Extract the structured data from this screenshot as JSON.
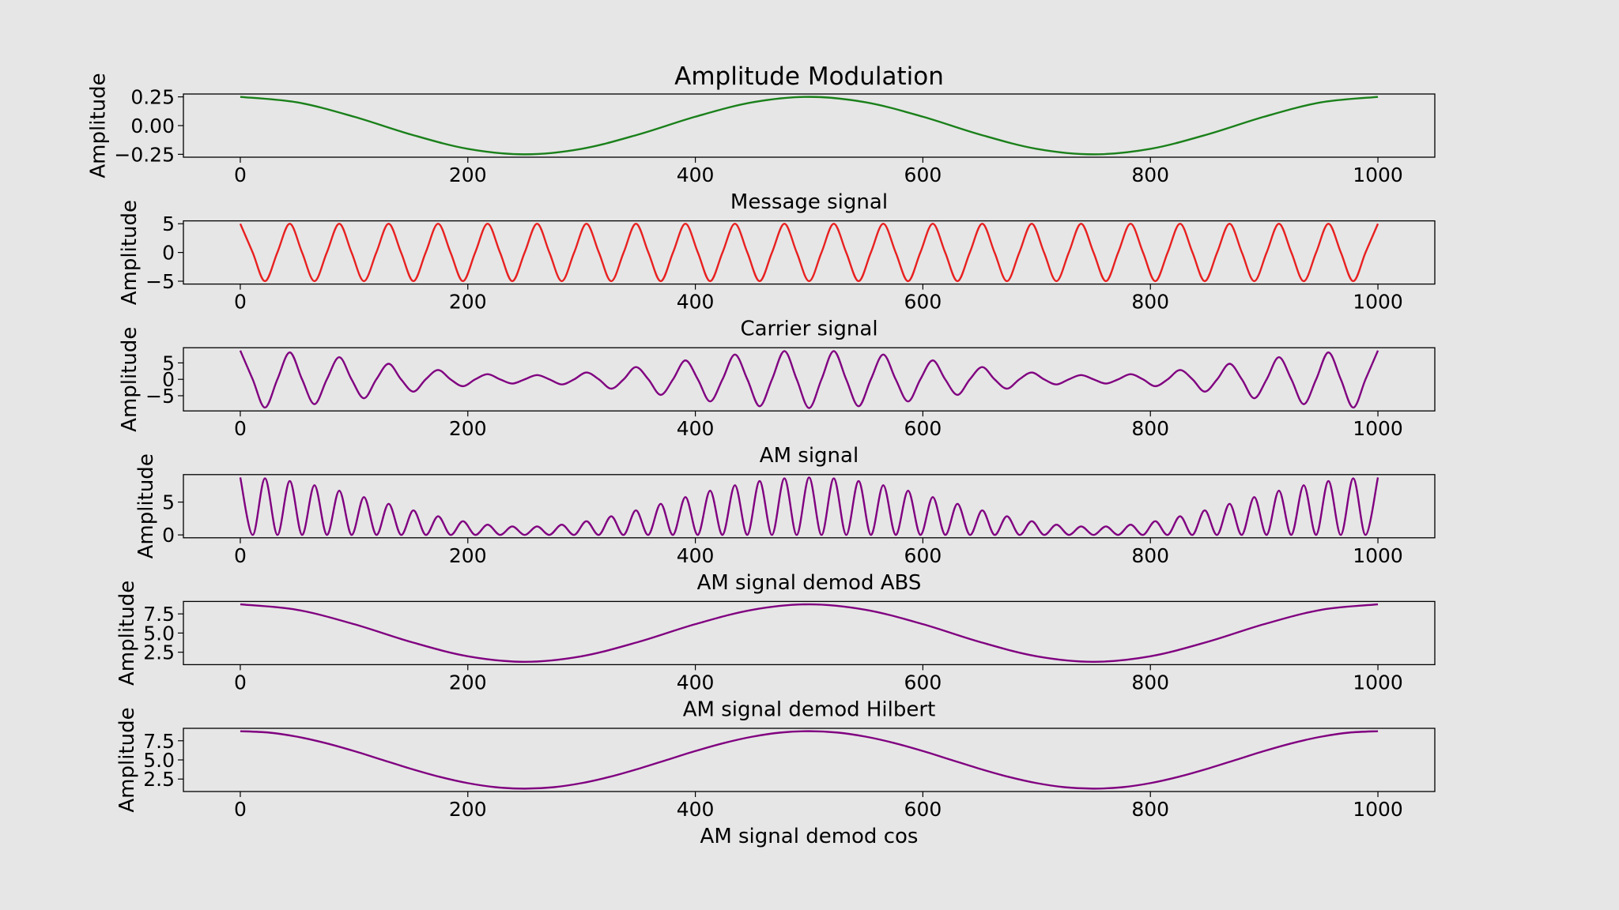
{
  "chart_data": [
    {
      "type": "line",
      "title": "Amplitude Modulation",
      "xlabel": "Message signal",
      "ylabel": "Amplitude",
      "x": [
        0,
        50,
        100,
        150,
        200,
        250,
        300,
        350,
        400,
        450,
        500,
        550,
        600,
        650,
        700,
        750,
        800,
        850,
        900,
        950,
        1000
      ],
      "series": [
        {
          "color": "#1a801a",
          "values": [
            0.25,
            0.2023,
            0.0773,
            -0.0773,
            -0.2023,
            -0.25,
            -0.2023,
            -0.0773,
            0.0773,
            0.2023,
            0.25,
            0.2023,
            0.0773,
            -0.0773,
            -0.2023,
            -0.25,
            -0.2023,
            -0.0773,
            0.0773,
            0.2023,
            0.25
          ]
        }
      ],
      "xlim": [
        -50,
        1050
      ],
      "xticks": [
        0,
        200,
        400,
        600,
        800,
        1000
      ],
      "ylim": [
        -0.275,
        0.275
      ],
      "yticks": [
        {
          "value": -0.25,
          "label": "−0.25"
        },
        {
          "value": 0,
          "label": "0.00"
        },
        0.25
      ]
    },
    {
      "type": "line",
      "xlabel": "Carrier signal",
      "ylabel": "Amplitude",
      "x": [
        0,
        10.9,
        21.7,
        32.6,
        43.5,
        54.3,
        65.2,
        76.1,
        87.0,
        97.8,
        108.7,
        119.6,
        130.4,
        141.3,
        152.2,
        163.0,
        173.9,
        184.8,
        195.7,
        206.5,
        217.4,
        228.3,
        239.1,
        250.0,
        260.9,
        271.7,
        282.6,
        293.5,
        304.3,
        315.2,
        326.1,
        337.0,
        347.8,
        358.7,
        369.6,
        380.4,
        391.3,
        402.2,
        413.0,
        423.9,
        434.8,
        445.7,
        456.5,
        467.4,
        478.3,
        489.1,
        500.0,
        510.9,
        521.7,
        532.6,
        543.5,
        554.3,
        565.2,
        576.1,
        587.0,
        597.8,
        608.7,
        619.6,
        630.4,
        641.3,
        652.2,
        663.0,
        673.9,
        684.8,
        695.7,
        706.5,
        717.4,
        728.3,
        739.1,
        750.0,
        760.9,
        771.7,
        782.6,
        793.5,
        804.3,
        815.2,
        826.1,
        837.0,
        847.8,
        858.7,
        869.6,
        880.4,
        891.3,
        902.2,
        913.0,
        923.9,
        934.8,
        945.7,
        956.5,
        967.4,
        978.3,
        989.1,
        1000.0
      ],
      "series": [
        {
          "color": "#e82020",
          "values": [
            5,
            0,
            -5,
            0,
            5,
            0,
            -5,
            0,
            5,
            0,
            -5,
            0,
            5,
            0,
            -5,
            0,
            5,
            0,
            -5,
            0,
            5,
            0,
            -5,
            0,
            5,
            0,
            -5,
            0,
            5,
            0,
            -5,
            0,
            5,
            0,
            -5,
            0,
            5,
            0,
            -5,
            0,
            5,
            0,
            -5,
            0,
            5,
            0,
            -5,
            0,
            5,
            0,
            -5,
            0,
            5,
            0,
            -5,
            0,
            5,
            0,
            -5,
            0,
            5,
            0,
            -5,
            0,
            5,
            0,
            -5,
            0,
            5,
            0,
            -5,
            0,
            5,
            0,
            -5,
            0,
            5,
            0,
            -5,
            0,
            5,
            0,
            -5,
            0,
            5,
            0,
            -5,
            0,
            5,
            0,
            -5,
            0,
            5
          ]
        }
      ],
      "xlim": [
        -50,
        1050
      ],
      "xticks": [
        0,
        200,
        400,
        600,
        800,
        1000
      ],
      "ylim": [
        -5.5,
        5.5
      ],
      "yticks": [
        {
          "value": -5,
          "label": "−5"
        },
        0,
        5
      ]
    },
    {
      "type": "line",
      "xlabel": "AM signal",
      "ylabel": "Amplitude",
      "x": [
        0,
        10.9,
        21.7,
        32.6,
        43.5,
        54.3,
        65.2,
        76.1,
        87.0,
        97.8,
        108.7,
        119.6,
        130.4,
        141.3,
        152.2,
        163.0,
        173.9,
        184.8,
        195.7,
        206.5,
        217.4,
        228.3,
        239.1,
        250.0,
        260.9,
        271.7,
        282.6,
        293.5,
        304.3,
        315.2,
        326.1,
        337.0,
        347.8,
        358.7,
        369.6,
        380.4,
        391.3,
        402.2,
        413.0,
        423.9,
        434.8,
        445.7,
        456.5,
        467.4,
        478.3,
        489.1,
        500.0,
        510.9,
        521.7,
        532.6,
        543.5,
        554.3,
        565.2,
        576.1,
        587.0,
        597.8,
        608.7,
        619.6,
        630.4,
        641.3,
        652.2,
        663.0,
        673.9,
        684.8,
        695.7,
        706.5,
        717.4,
        728.3,
        739.1,
        750.0,
        760.9,
        771.7,
        782.6,
        793.5,
        804.3,
        815.2,
        826.1,
        837.0,
        847.8,
        858.7,
        869.6,
        880.4,
        891.3,
        902.2,
        913.0,
        923.9,
        934.8,
        945.7,
        956.5,
        967.4,
        978.3,
        989.1,
        1000.0
      ],
      "series": [
        {
          "color": "#800080",
          "values": [
            8.75,
            0,
            -8.61,
            0,
            8.2,
            0,
            -7.56,
            0,
            6.73,
            0,
            -5.76,
            0,
            4.74,
            0,
            -3.74,
            0,
            2.84,
            0,
            -2.09,
            0,
            1.56,
            0,
            -1.29,
            0,
            1.29,
            0,
            -1.56,
            0,
            2.09,
            0,
            -2.84,
            0,
            3.74,
            0,
            -4.74,
            0,
            5.76,
            0,
            -6.73,
            0,
            7.56,
            0,
            -8.2,
            0,
            8.61,
            0,
            -8.75,
            0,
            8.61,
            0,
            -8.2,
            0,
            7.56,
            0,
            -6.73,
            0,
            5.76,
            0,
            -4.74,
            0,
            3.74,
            0,
            -2.84,
            0,
            2.09,
            0,
            -1.56,
            0,
            1.29,
            0,
            -1.29,
            0,
            1.56,
            0,
            -2.09,
            0,
            2.84,
            0,
            -3.74,
            0,
            4.74,
            0,
            -5.76,
            0,
            6.73,
            0,
            -7.56,
            0,
            8.2,
            0,
            -8.61,
            0,
            8.75
          ]
        }
      ],
      "xlim": [
        -50,
        1050
      ],
      "xticks": [
        0,
        200,
        400,
        600,
        800,
        1000
      ],
      "ylim": [
        -9.625,
        9.625
      ],
      "yticks": [
        {
          "value": -5,
          "label": "−5"
        },
        0,
        5
      ]
    },
    {
      "type": "line",
      "xlabel": "AM signal demod ABS",
      "ylabel": "Amplitude",
      "x": [
        0,
        10.9,
        21.7,
        32.6,
        43.5,
        54.3,
        65.2,
        76.1,
        87.0,
        97.8,
        108.7,
        119.6,
        130.4,
        141.3,
        152.2,
        163.0,
        173.9,
        184.8,
        195.7,
        206.5,
        217.4,
        228.3,
        239.1,
        250.0,
        260.9,
        271.7,
        282.6,
        293.5,
        304.3,
        315.2,
        326.1,
        337.0,
        347.8,
        358.7,
        369.6,
        380.4,
        391.3,
        402.2,
        413.0,
        423.9,
        434.8,
        445.7,
        456.5,
        467.4,
        478.3,
        489.1,
        500.0,
        510.9,
        521.7,
        532.6,
        543.5,
        554.3,
        565.2,
        576.1,
        587.0,
        597.8,
        608.7,
        619.6,
        630.4,
        641.3,
        652.2,
        663.0,
        673.9,
        684.8,
        695.7,
        706.5,
        717.4,
        728.3,
        739.1,
        750.0,
        760.9,
        771.7,
        782.6,
        793.5,
        804.3,
        815.2,
        826.1,
        837.0,
        847.8,
        858.7,
        869.6,
        880.4,
        891.3,
        902.2,
        913.0,
        923.9,
        934.8,
        945.7,
        956.5,
        967.4,
        978.3,
        989.1,
        1000.0
      ],
      "series": [
        {
          "color": "#800080",
          "values": [
            8.75,
            0,
            8.61,
            0,
            8.2,
            0,
            7.56,
            0,
            6.73,
            0,
            5.76,
            0,
            4.74,
            0,
            3.74,
            0,
            2.84,
            0,
            2.09,
            0,
            1.56,
            0,
            1.29,
            0,
            1.29,
            0,
            1.56,
            0,
            2.09,
            0,
            2.84,
            0,
            3.74,
            0,
            4.74,
            0,
            5.76,
            0,
            6.73,
            0,
            7.56,
            0,
            8.2,
            0,
            8.61,
            0,
            8.75,
            0,
            8.61,
            0,
            8.2,
            0,
            7.56,
            0,
            6.73,
            0,
            5.76,
            0,
            4.74,
            0,
            3.74,
            0,
            2.84,
            0,
            2.09,
            0,
            1.56,
            0,
            1.29,
            0,
            1.29,
            0,
            1.56,
            0,
            2.09,
            0,
            2.84,
            0,
            3.74,
            0,
            4.74,
            0,
            5.76,
            0,
            6.73,
            0,
            7.56,
            0,
            8.2,
            0,
            8.61,
            0,
            8.75
          ]
        }
      ],
      "xlim": [
        -50,
        1050
      ],
      "xticks": [
        0,
        200,
        400,
        600,
        800,
        1000
      ],
      "ylim": [
        -0.4375,
        9.1875
      ],
      "yticks": [
        0,
        5
      ]
    },
    {
      "type": "line",
      "xlabel": "AM signal demod Hilbert",
      "ylabel": "Amplitude",
      "x": [
        0,
        50,
        100,
        150,
        200,
        250,
        300,
        350,
        400,
        450,
        500,
        550,
        600,
        650,
        700,
        750,
        800,
        850,
        900,
        950,
        1000
      ],
      "series": [
        {
          "color": "#800080",
          "values": [
            8.75,
            8.03,
            6.16,
            3.84,
            1.97,
            1.25,
            1.97,
            3.84,
            6.16,
            8.03,
            8.75,
            8.03,
            6.16,
            3.84,
            1.97,
            1.25,
            1.97,
            3.84,
            6.16,
            8.03,
            8.75
          ]
        }
      ],
      "xlim": [
        -50,
        1050
      ],
      "xticks": [
        0,
        200,
        400,
        600,
        800,
        1000
      ],
      "ylim": [
        0.875,
        9.125
      ],
      "yticks": [
        2.5,
        {
          "value": 5,
          "label": "5.0"
        },
        7.5
      ]
    },
    {
      "type": "line",
      "xlabel": "AM signal demod cos",
      "ylabel": "Amplitude",
      "x": [
        0,
        25,
        50,
        75,
        100,
        125,
        150,
        175,
        200,
        225,
        250,
        275,
        300,
        325,
        350,
        375,
        400,
        425,
        450,
        475,
        500,
        525,
        550,
        575,
        600,
        625,
        650,
        675,
        700,
        725,
        750,
        775,
        800,
        825,
        850,
        875,
        900,
        925,
        950,
        975,
        1000
      ],
      "series": [
        {
          "color": "#800080",
          "values": [
            8.75,
            8.57,
            8.03,
            7.2,
            6.16,
            5.0,
            3.84,
            2.8,
            1.97,
            1.43,
            1.25,
            1.43,
            1.97,
            2.8,
            3.84,
            5.0,
            6.16,
            7.2,
            8.03,
            8.57,
            8.75,
            8.57,
            8.03,
            7.2,
            6.16,
            5.0,
            3.84,
            2.8,
            1.97,
            1.43,
            1.25,
            1.43,
            1.97,
            2.8,
            3.84,
            5.0,
            6.16,
            7.2,
            8.03,
            8.57,
            8.75
          ]
        }
      ],
      "xlim": [
        -50,
        1050
      ],
      "xticks": [
        0,
        200,
        400,
        600,
        800,
        1000
      ],
      "ylim": [
        0.875,
        9.125
      ],
      "yticks": [
        2.5,
        {
          "value": 5,
          "label": "5.0"
        },
        7.5
      ]
    }
  ]
}
